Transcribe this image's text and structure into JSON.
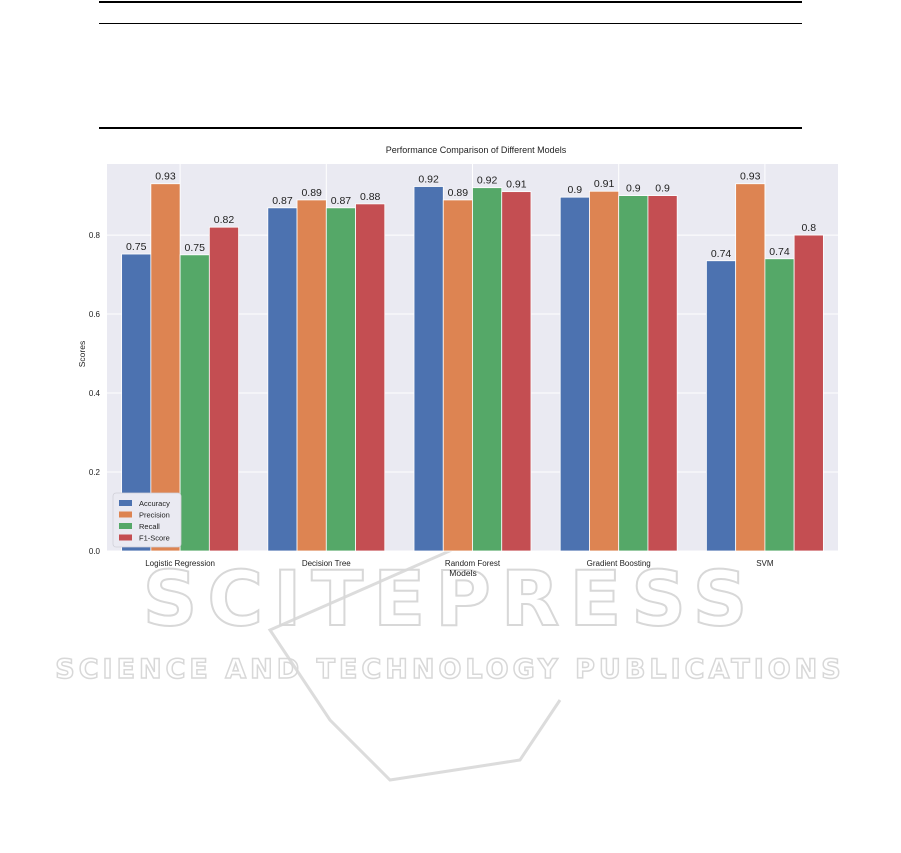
{
  "chart_data": {
    "type": "bar",
    "title": "Performance Comparison of Different Models",
    "xlabel": "Models",
    "ylabel": "Scores",
    "ylim": [
      0,
      0.98
    ],
    "yticks": [
      "0.0",
      "0.2",
      "0.4",
      "0.6",
      "0.8"
    ],
    "grid": true,
    "legend_position": "lower-left",
    "categories": [
      "Logistic Regression",
      "Decision Tree",
      "Random Forest",
      "Gradient Boosting",
      "SVM"
    ],
    "series": [
      {
        "name": "Accuracy",
        "color": "#4c72b0",
        "values": [
          0.752,
          0.869,
          0.923,
          0.896,
          0.735
        ],
        "labels": [
          "0.75",
          "0.87",
          "0.92",
          "0.9",
          "0.74"
        ]
      },
      {
        "name": "Precision",
        "color": "#dd8452",
        "values": [
          0.93,
          0.889,
          0.889,
          0.911,
          0.93
        ],
        "labels": [
          "0.93",
          "0.89",
          "0.89",
          "0.91",
          "0.93"
        ]
      },
      {
        "name": "Recall",
        "color": "#55a868",
        "values": [
          0.75,
          0.869,
          0.92,
          0.9,
          0.74
        ],
        "labels": [
          "0.75",
          "0.87",
          "0.92",
          "0.9",
          "0.74"
        ]
      },
      {
        "name": "F1-Score",
        "color": "#c44e52",
        "values": [
          0.82,
          0.879,
          0.91,
          0.9,
          0.8
        ],
        "labels": [
          "0.82",
          "0.88",
          "0.91",
          "0.9",
          "0.8"
        ]
      }
    ]
  },
  "watermark": {
    "brand": "SCITEPRESS",
    "tagline": "SCIENCE AND TECHNOLOGY PUBLICATIONS"
  },
  "colors": {
    "plot_background": "#eaeaf2",
    "grid": "#ffffff"
  }
}
